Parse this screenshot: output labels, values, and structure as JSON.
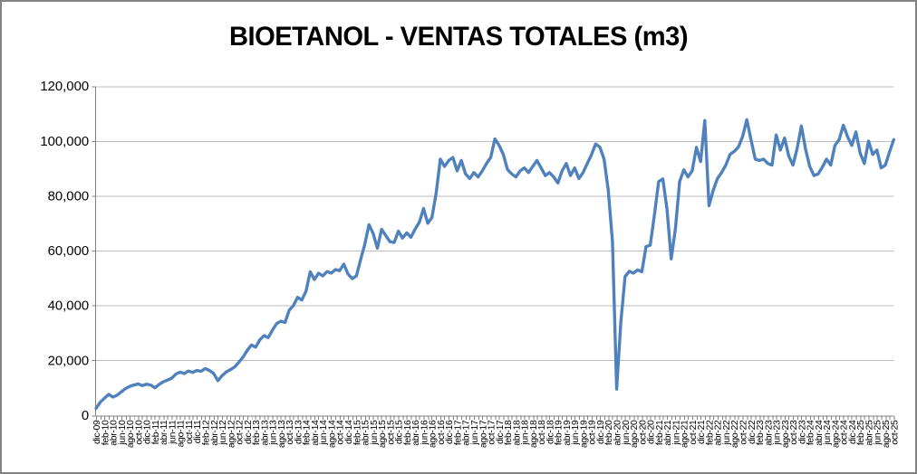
{
  "chart_data": {
    "type": "line",
    "title": "BIOETANOL - VENTAS TOTALES (m3)",
    "xlabel": "",
    "ylabel": "",
    "x_frequency": "monthly",
    "x_start": "dic-09",
    "x_end": "oct-25",
    "x_label_interval": 2,
    "x_tick_labels": [
      "dic-09",
      "feb-10",
      "abr-10",
      "jun-10",
      "ago-10",
      "oct-10",
      "dic-10",
      "feb-11",
      "abr-11",
      "jun-11",
      "ago-11",
      "oct-11",
      "dic-11",
      "feb-12",
      "abr-12",
      "jun-12",
      "ago-12",
      "oct-12",
      "dic-12",
      "feb-13",
      "abr-13",
      "jun-13",
      "ago-13",
      "oct-13",
      "dic-13",
      "feb-14",
      "abr-14",
      "jun-14",
      "ago-14",
      "oct-14",
      "dic-14",
      "feb-15",
      "abr-15",
      "jun-15",
      "ago-15",
      "oct-15",
      "dic-15",
      "feb-16",
      "abr-16",
      "jun-16",
      "ago-16",
      "oct-16",
      "dic-16",
      "feb-17",
      "abr-17",
      "jun-17",
      "ago-17",
      "oct-17",
      "dic-17",
      "feb-18",
      "abr-18",
      "jun-18",
      "ago-18",
      "oct-18",
      "dic-18",
      "feb-19",
      "abr-19",
      "jun-19",
      "ago-19",
      "oct-19",
      "dic-19",
      "feb-20",
      "abr-20",
      "jun-20",
      "ago-20",
      "oct-20",
      "dic-20",
      "feb-21",
      "abr-21",
      "jun-21",
      "ago-21",
      "oct-21",
      "dic-21",
      "feb-22",
      "abr-22",
      "jun-22",
      "ago-22",
      "oct-22",
      "dic-22",
      "feb-23",
      "abr-23",
      "jun-23",
      "ago-23",
      "oct-23",
      "dic-23",
      "feb-24",
      "abr-24",
      "jun-24",
      "ago-24",
      "oct-24",
      "dic-24",
      "feb-25",
      "abr-25",
      "jun-25",
      "ago-25",
      "oct-25"
    ],
    "values": [
      2500,
      4800,
      6200,
      7600,
      6600,
      7300,
      8500,
      9700,
      10500,
      11000,
      11400,
      10800,
      11300,
      11000,
      10000,
      11200,
      12200,
      12800,
      13500,
      15000,
      15700,
      15200,
      16100,
      15600,
      16300,
      16000,
      17000,
      16300,
      15200,
      12600,
      14400,
      15800,
      16600,
      17600,
      19300,
      21200,
      23600,
      25600,
      24800,
      27500,
      29000,
      28300,
      31000,
      33400,
      34300,
      33800,
      38300,
      40000,
      43000,
      42000,
      45200,
      52300,
      49500,
      51800,
      50800,
      52400,
      51800,
      53100,
      52700,
      55100,
      51500,
      49800,
      50800,
      56700,
      62300,
      69500,
      66200,
      60900,
      67800,
      65500,
      63300,
      63000,
      67100,
      64600,
      66500,
      64900,
      67900,
      70400,
      75400,
      70000,
      72100,
      81000,
      93400,
      90700,
      92900,
      94000,
      89100,
      92900,
      88000,
      86300,
      88500,
      86900,
      89100,
      91800,
      94000,
      100800,
      98400,
      95100,
      89600,
      88000,
      86900,
      89100,
      90200,
      88500,
      90700,
      92900,
      90200,
      87400,
      88500,
      86900,
      84700,
      89100,
      91800,
      87400,
      90200,
      86300,
      88500,
      91800,
      95000,
      98900,
      97800,
      93400,
      82000,
      63400,
      9500,
      34000,
      50500,
      52500,
      51800,
      53000,
      52300,
      61500,
      62000,
      73100,
      85200,
      86200,
      75000,
      57000,
      68000,
      85200,
      89500,
      86900,
      89200,
      97700,
      92500,
      107500,
      76400,
      82000,
      86300,
      88500,
      91200,
      95100,
      96200,
      97800,
      101600,
      107800,
      100500,
      93400,
      92900,
      93400,
      91800,
      91200,
      102200,
      96700,
      101100,
      94500,
      91200,
      97300,
      105500,
      97000,
      90700,
      87400,
      88000,
      90500,
      93400,
      91200,
      98400,
      100500,
      105800,
      101600,
      98400,
      103300,
      95600,
      91800,
      100000,
      95100,
      96700,
      90200,
      91200,
      96000,
      100500
    ],
    "ylim": [
      0,
      120000
    ],
    "y_ticks": [
      0,
      20000,
      40000,
      60000,
      80000,
      100000,
      120000
    ],
    "grid": true,
    "legend_position": "none",
    "colors": {
      "line": "#4F81BD",
      "grid": "#BDBDBD",
      "axis": "#808080",
      "text": "#000000",
      "frame_border": "#838383",
      "background": "#FFFFFF"
    }
  }
}
